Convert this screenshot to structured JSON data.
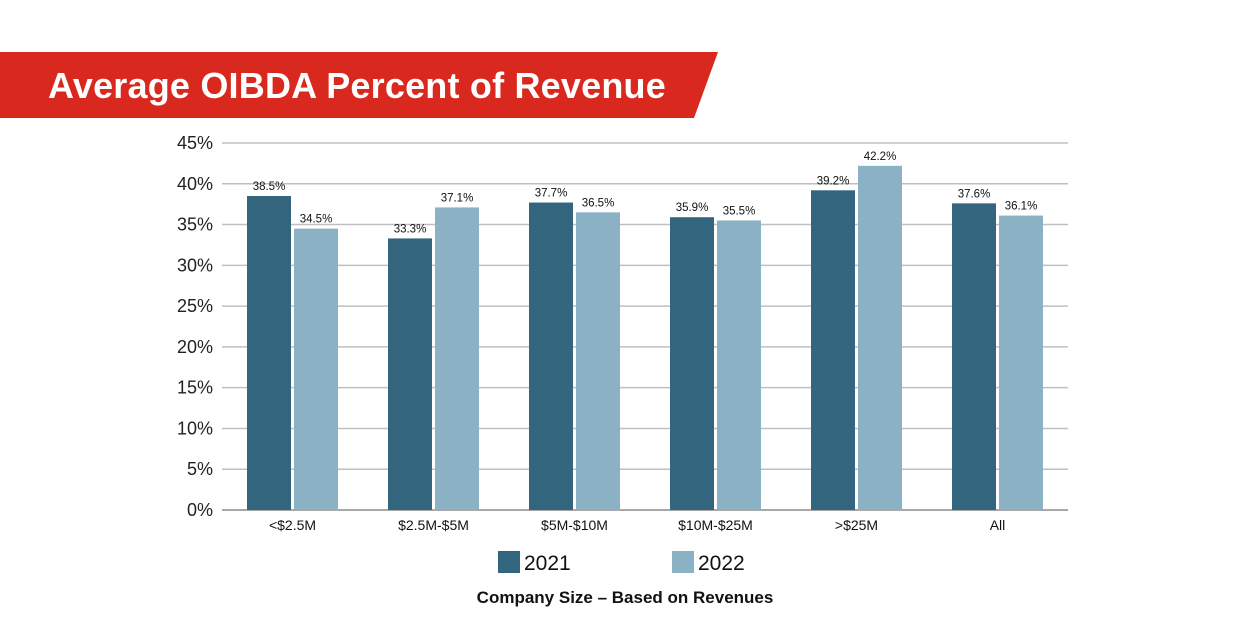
{
  "header": {
    "title": "Average OIBDA Percent of Revenue"
  },
  "colors": {
    "banner": "#d9281e",
    "series_2021": "#34657f",
    "series_2022": "#8ab1c4",
    "grid": "#bfbfbf"
  },
  "chart_data": {
    "type": "bar",
    "title": "Average OIBDA Percent of Revenue",
    "xlabel": "Company Size – Based on Revenues",
    "ylabel": "",
    "ylim": [
      0,
      45
    ],
    "yticks": [
      0,
      5,
      10,
      15,
      20,
      25,
      30,
      35,
      40,
      45
    ],
    "ytick_labels": [
      "0%",
      "5%",
      "10%",
      "15%",
      "20%",
      "25%",
      "30%",
      "35%",
      "40%",
      "45%"
    ],
    "grid": true,
    "legend_position": "bottom",
    "categories": [
      "<$2.5M",
      "$2.5M-$5M",
      "$5M-$10M",
      "$10M-$25M",
      ">$25M",
      "All"
    ],
    "series": [
      {
        "name": "2021",
        "values": [
          38.5,
          33.3,
          37.7,
          35.9,
          39.2,
          37.6
        ],
        "labels": [
          "38.5%",
          "33.3%",
          "37.7%",
          "35.9%",
          "39.2%",
          "37.6%"
        ]
      },
      {
        "name": "2022",
        "values": [
          34.5,
          37.1,
          36.5,
          35.5,
          42.2,
          36.1
        ],
        "labels": [
          "34.5%",
          "37.1%",
          "36.5%",
          "35.5%",
          "42.2%",
          "36.1%"
        ]
      }
    ]
  }
}
